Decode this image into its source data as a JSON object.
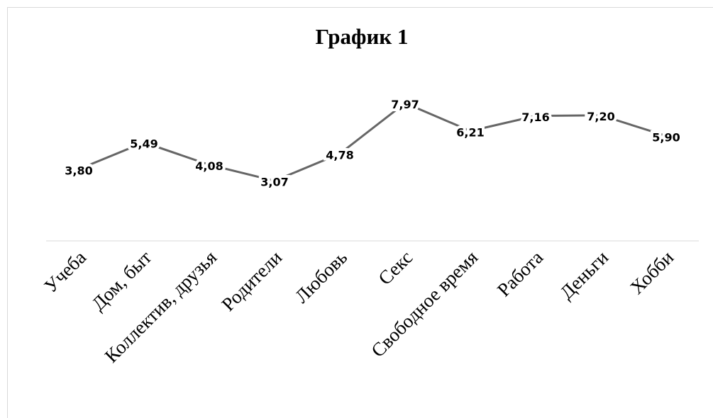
{
  "chart_data": {
    "type": "line",
    "title": "График  1",
    "categories": [
      "Учеба",
      "Дом, быт",
      "Коллектив, друзья",
      "Родители",
      "Любовь",
      "Секс",
      "Свободное время",
      "Работа",
      "Деньги",
      "Хобби"
    ],
    "values": [
      3.8,
      5.49,
      4.08,
      3.07,
      4.78,
      7.97,
      6.21,
      7.16,
      7.2,
      5.9
    ],
    "value_labels": [
      "3,80",
      "5,49",
      "4,08",
      "3,07",
      "4,78",
      "7,97",
      "6,21",
      "7,16",
      "7,20",
      "5,90"
    ],
    "color": "#666666"
  }
}
